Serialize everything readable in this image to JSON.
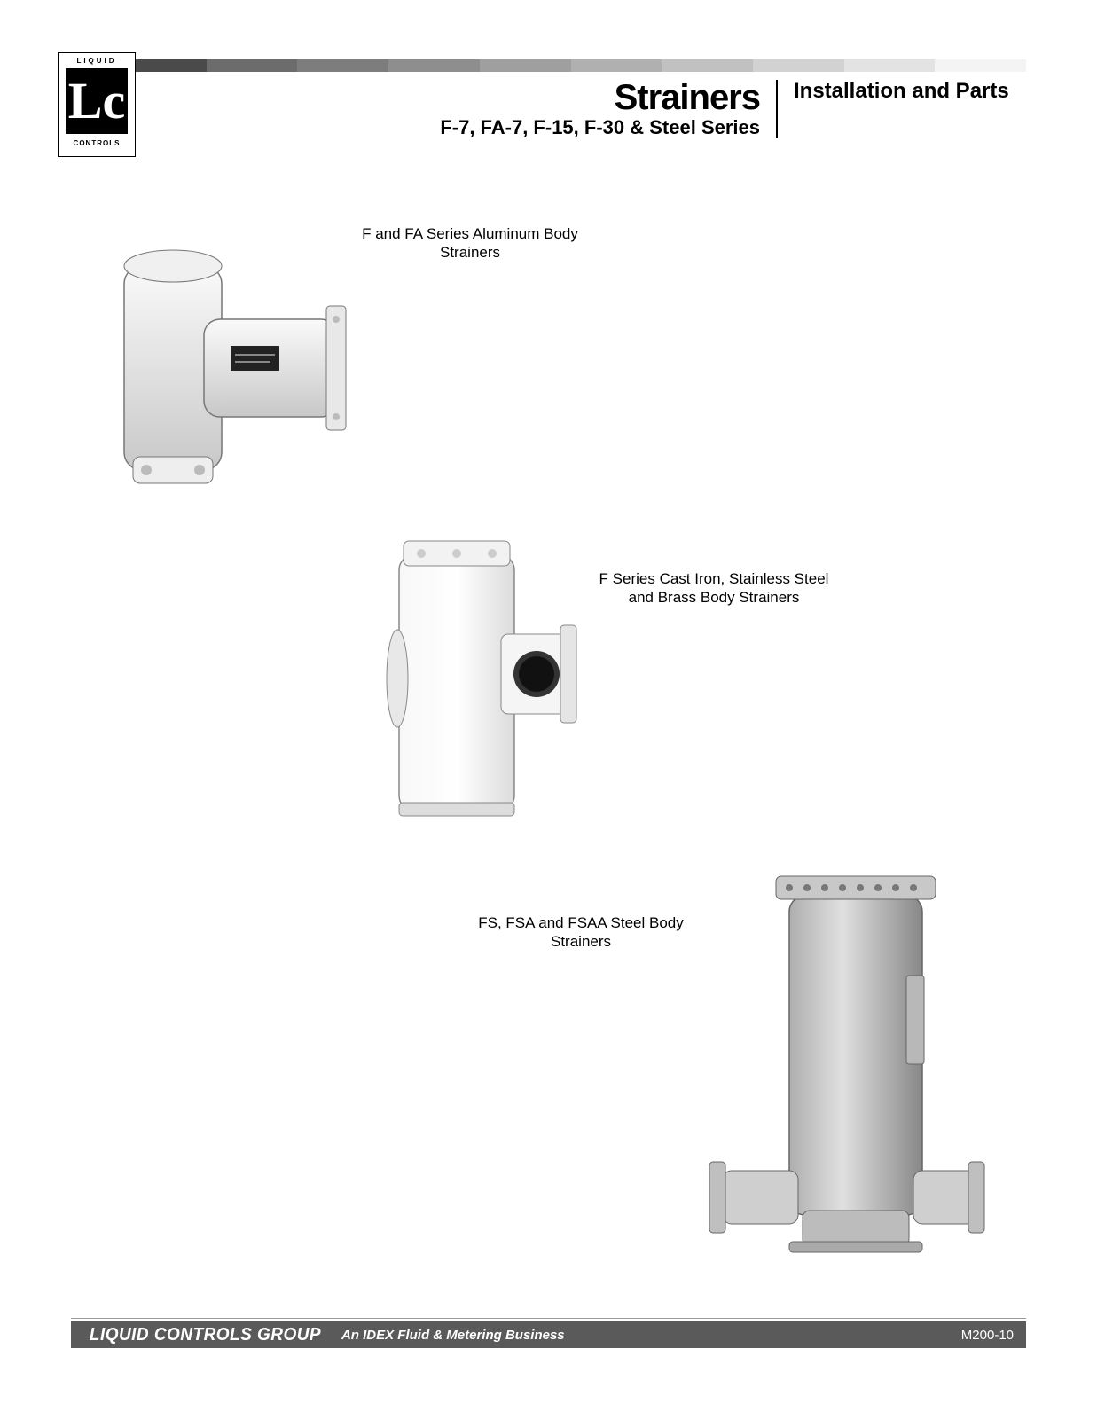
{
  "logo": {
    "top_text": "LIQUID",
    "mid_text": "Lc",
    "bottom_text": "CONTROLS"
  },
  "header": {
    "gradient_colors": [
      "#4a4a4a",
      "#6c6c6c",
      "#7d7d7d",
      "#8e8e8e",
      "#9f9f9f",
      "#b0b0b0",
      "#c1c1c1",
      "#d2d2d2",
      "#e3e3e3",
      "#f4f4f4"
    ],
    "title_main": "Strainers",
    "title_sub": "F-7, FA-7, F-15, F-30 & Steel Series",
    "title_right": "Installation and Parts"
  },
  "products": [
    {
      "caption": "F and FA Series Aluminum Body Strainers"
    },
    {
      "caption": "F Series Cast Iron, Stainless Steel and Brass Body Strainers"
    },
    {
      "caption": "FS, FSA and FSAA Steel Body Strainers"
    }
  ],
  "footer": {
    "brand": "LIQUID CONTROLS GROUP",
    "tagline": "An IDEX Fluid & Metering Business",
    "doc_number": "M200-10"
  }
}
